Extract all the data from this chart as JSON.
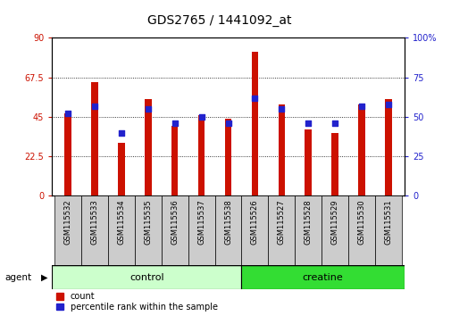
{
  "title": "GDS2765 / 1441092_at",
  "samples": [
    "GSM115532",
    "GSM115533",
    "GSM115534",
    "GSM115535",
    "GSM115536",
    "GSM115537",
    "GSM115538",
    "GSM115526",
    "GSM115527",
    "GSM115528",
    "GSM115529",
    "GSM115530",
    "GSM115531"
  ],
  "counts": [
    47,
    65,
    30,
    55,
    40,
    46,
    44,
    82,
    52,
    38,
    36,
    52,
    55
  ],
  "percentiles": [
    52,
    57,
    40,
    55,
    46,
    50,
    46,
    62,
    55,
    46,
    46,
    57,
    58
  ],
  "bar_color": "#CC1100",
  "dot_color": "#2222CC",
  "ylim_left": [
    0,
    90
  ],
  "ylim_right": [
    0,
    100
  ],
  "yticks_left": [
    0,
    22.5,
    45,
    67.5,
    90
  ],
  "yticks_right": [
    0,
    25,
    50,
    75,
    100
  ],
  "ytick_labels_left": [
    "0",
    "22.5",
    "45",
    "67.5",
    "90"
  ],
  "ytick_labels_right": [
    "0",
    "25",
    "50",
    "75",
    "100%"
  ],
  "agent_label": "agent",
  "legend_count": "count",
  "legend_pct": "percentile rank within the sample",
  "bar_width": 0.25,
  "title_fontsize": 10,
  "tick_fontsize": 7,
  "label_fontsize": 7,
  "axis_label_color_left": "#CC1100",
  "axis_label_color_right": "#2222CC",
  "background_color": "#ffffff",
  "ctrl_color": "#CCFFCC",
  "creat_color": "#33DD33",
  "separator_idx": 7,
  "box_color": "#CCCCCC"
}
